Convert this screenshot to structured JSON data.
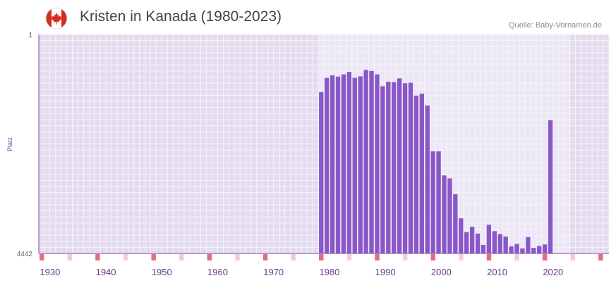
{
  "header": {
    "title": "Kristen in Kanada (1980-2023)",
    "source": "Quelle: Baby-Vornamen.de",
    "flag_icon": "canada-flag-icon"
  },
  "colors": {
    "bar": "#8a57c8",
    "plot_bg": "#e3dcee",
    "plot_bg_active": "#ece7f5",
    "grid": "#f6f3fa",
    "axis": "#7a45a8",
    "decade_marker": "#e0707a",
    "half_decade_marker": "#f2ccd6",
    "flag_red": "#d52b1e"
  },
  "chart_data": {
    "type": "bar",
    "title": "Kristen in Kanada (1980-2023)",
    "xlabel": "",
    "ylabel": "Platz",
    "y_inverted": true,
    "ylim": [
      1,
      4442
    ],
    "xlim": [
      1928,
      2029
    ],
    "active_range": [
      1978,
      2022
    ],
    "y_tick_labels": [
      "1",
      "4442"
    ],
    "x_tick_labels": [
      "1930",
      "1940",
      "1950",
      "1960",
      "1970",
      "1980",
      "1990",
      "2000",
      "2010",
      "2020"
    ],
    "x_tick_values": [
      1930,
      1940,
      1950,
      1960,
      1970,
      1980,
      1990,
      2000,
      2010,
      2020
    ],
    "decade_markers": [
      1928,
      1938,
      1948,
      1958,
      1968,
      1978,
      1988,
      1998,
      2008,
      2018,
      2028
    ],
    "half_decade_markers": [
      1933,
      1943,
      1953,
      1963,
      1973,
      1983,
      1993,
      2003,
      2013,
      2023
    ],
    "years": [
      1978,
      1979,
      1980,
      1981,
      1982,
      1983,
      1984,
      1985,
      1986,
      1987,
      1988,
      1989,
      1990,
      1991,
      1992,
      1993,
      1994,
      1995,
      1996,
      1997,
      1998,
      1999,
      2000,
      2001,
      2002,
      2003,
      2004,
      2005,
      2006,
      2007,
      2008,
      2009,
      2010,
      2011,
      2012,
      2013,
      2014,
      2015,
      2016,
      2017,
      2018,
      2019,
      2020,
      2021,
      2022
    ],
    "values": [
      1170,
      880,
      830,
      855,
      810,
      760,
      880,
      850,
      720,
      740,
      810,
      1050,
      960,
      970,
      890,
      990,
      980,
      1240,
      1200,
      1440,
      2370,
      2370,
      2860,
      2920,
      3240,
      3730,
      4010,
      3900,
      4040,
      4270,
      3860,
      3990,
      4050,
      4100,
      4300,
      4250,
      4340,
      4110,
      4330,
      4290,
      4260,
      1740,
      0,
      0,
      0
    ],
    "values_note": "rank per year (1 = best); 0 = not shown"
  }
}
